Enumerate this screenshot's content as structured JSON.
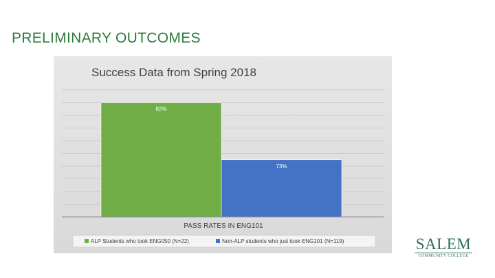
{
  "slide": {
    "title": "PRELIMINARY OUTCOMES"
  },
  "logo": {
    "main": "SALEM",
    "sub": "COMMUNITY COLLEGE",
    "color": "#2e6f54"
  },
  "chart_data": {
    "type": "bar",
    "title": "Success Data from Spring 2018",
    "xlabel": "PASS RATES IN ENG101",
    "ylabel": "",
    "categories": [
      "PASS RATES IN ENG101"
    ],
    "series": [
      {
        "name": "ALP Students who took ENG050 (N=22)",
        "values": [
          82
        ],
        "label": "82%",
        "color": "#70ad47"
      },
      {
        "name": "Non-ALP students who just took ENG101 (N=119)",
        "values": [
          73
        ],
        "label": "73%",
        "color": "#4472c4"
      }
    ],
    "ylim": [
      64,
      84
    ],
    "grid": true,
    "legend_position": "bottom"
  }
}
